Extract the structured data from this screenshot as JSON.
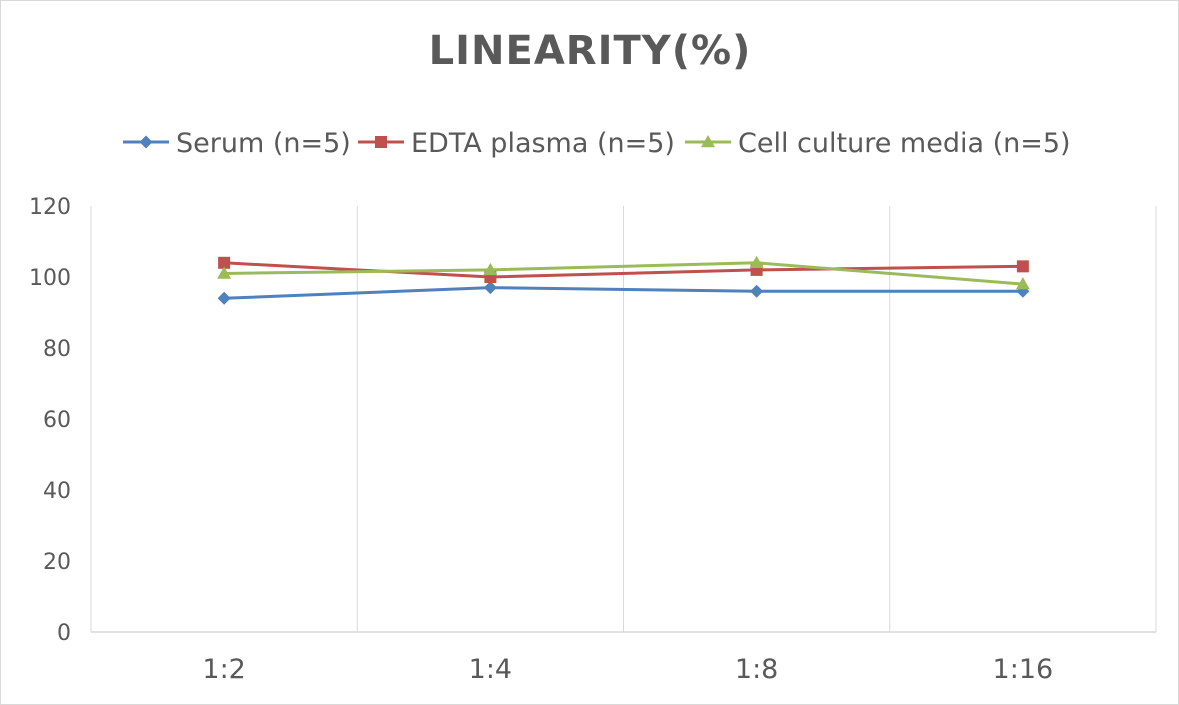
{
  "chart_data": {
    "type": "line",
    "title": "LINEARITY(%)",
    "categories": [
      "1:2",
      "1:4",
      "1:8",
      "1:16"
    ],
    "ylim": [
      0,
      120
    ],
    "yticks": [
      0,
      20,
      40,
      60,
      80,
      100,
      120
    ],
    "grid": "vertical",
    "legend_position": "top",
    "series": [
      {
        "name": "Serum (n=5)",
        "values": [
          94,
          97,
          96,
          96
        ],
        "color": "#4f81bd",
        "marker": "diamond"
      },
      {
        "name": "EDTA plasma (n=5)",
        "values": [
          104,
          100,
          102,
          103
        ],
        "color": "#c0504d",
        "marker": "square"
      },
      {
        "name": "Cell culture media (n=5)",
        "values": [
          101,
          102,
          104,
          98
        ],
        "color": "#9bbb59",
        "marker": "triangle"
      }
    ]
  }
}
